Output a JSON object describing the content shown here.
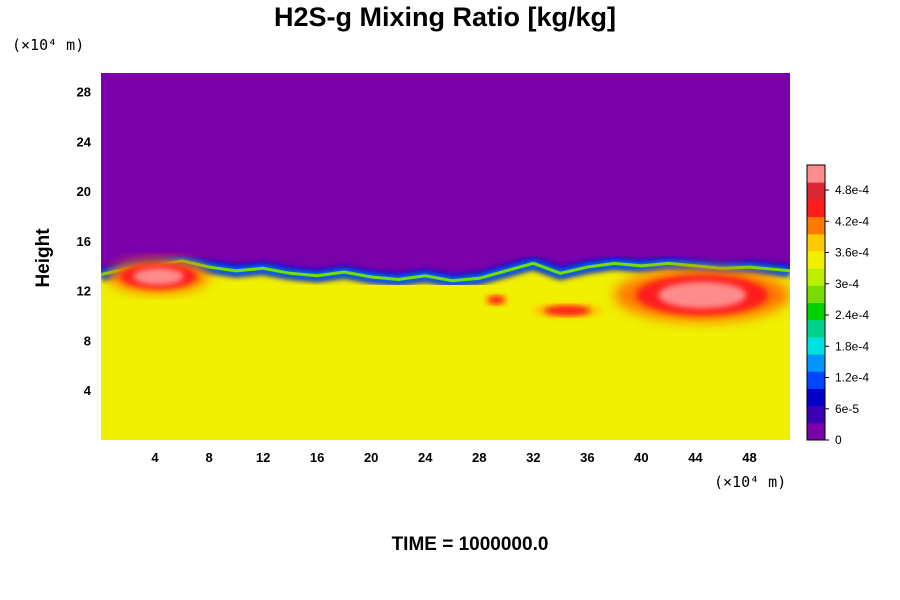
{
  "chart_data": {
    "type": "heatmap",
    "title": "H2S-g Mixing Ratio [kg/kg]",
    "ylabel": "Height",
    "x_unit_label": "(×10⁴ m)",
    "y_unit_label": "(×10⁴ m)",
    "xlim": [
      0,
      51
    ],
    "ylim": [
      0,
      29.5
    ],
    "x_ticks": [
      4,
      8,
      12,
      16,
      20,
      24,
      28,
      32,
      36,
      40,
      44,
      48
    ],
    "y_ticks": [
      4,
      8,
      12,
      16,
      20,
      24,
      28
    ],
    "colorbar": {
      "range": [
        0,
        0.000528
      ],
      "tick_values": [
        0,
        6e-05,
        0.00012,
        0.00018,
        0.00024,
        0.0003,
        0.00036,
        0.00042,
        0.00048
      ],
      "tick_labels": [
        "0",
        "6e-5",
        "1.2e-4",
        "1.8e-4",
        "2.4e-4",
        "3e-4",
        "3.6e-4",
        "4.2e-4",
        "4.8e-4"
      ],
      "colors": [
        "#7a00aa",
        "#3c00b4",
        "#0000c8",
        "#0046ff",
        "#0096ff",
        "#00e1e1",
        "#00d28c",
        "#00d200",
        "#78dc00",
        "#bef000",
        "#f0f000",
        "#ffc800",
        "#ff7800",
        "#ff1e1e",
        "#dc2832",
        "#ff8c8c"
      ]
    },
    "field": {
      "upper_value": 0.0,
      "lower_value": 0.00033,
      "interface_height": [
        {
          "x": 0,
          "y": 13.3
        },
        {
          "x": 2,
          "y": 13.8
        },
        {
          "x": 4,
          "y": 14.0
        },
        {
          "x": 6,
          "y": 14.4
        },
        {
          "x": 8,
          "y": 13.9
        },
        {
          "x": 10,
          "y": 13.6
        },
        {
          "x": 12,
          "y": 13.8
        },
        {
          "x": 14,
          "y": 13.4
        },
        {
          "x": 16,
          "y": 13.2
        },
        {
          "x": 18,
          "y": 13.5
        },
        {
          "x": 20,
          "y": 13.1
        },
        {
          "x": 22,
          "y": 12.9
        },
        {
          "x": 24,
          "y": 13.2
        },
        {
          "x": 26,
          "y": 12.8
        },
        {
          "x": 28,
          "y": 13.0
        },
        {
          "x": 30,
          "y": 13.6
        },
        {
          "x": 32,
          "y": 14.2
        },
        {
          "x": 34,
          "y": 13.4
        },
        {
          "x": 36,
          "y": 13.9
        },
        {
          "x": 38,
          "y": 14.2
        },
        {
          "x": 40,
          "y": 14.0
        },
        {
          "x": 42,
          "y": 14.2
        },
        {
          "x": 44,
          "y": 14.0
        },
        {
          "x": 46,
          "y": 13.8
        },
        {
          "x": 48,
          "y": 13.9
        },
        {
          "x": 50,
          "y": 13.7
        },
        {
          "x": 51,
          "y": 13.6
        }
      ],
      "high_concentration_regions": [
        {
          "x_range": [
            0.5,
            8.0
          ],
          "y_range": [
            11.8,
            14.5
          ],
          "value": 0.0005
        },
        {
          "x_range": [
            28.0,
            30.5
          ],
          "y_range": [
            10.6,
            11.9
          ],
          "value": 0.00044
        },
        {
          "x_range": [
            31.0,
            38.0
          ],
          "y_range": [
            9.6,
            11.2
          ],
          "value": 0.00045
        },
        {
          "x_range": [
            38.0,
            51.0
          ],
          "y_range": [
            9.5,
            13.8
          ],
          "value": 0.0005
        }
      ]
    }
  },
  "footer": {
    "time_label": "TIME = 1000000.0"
  }
}
